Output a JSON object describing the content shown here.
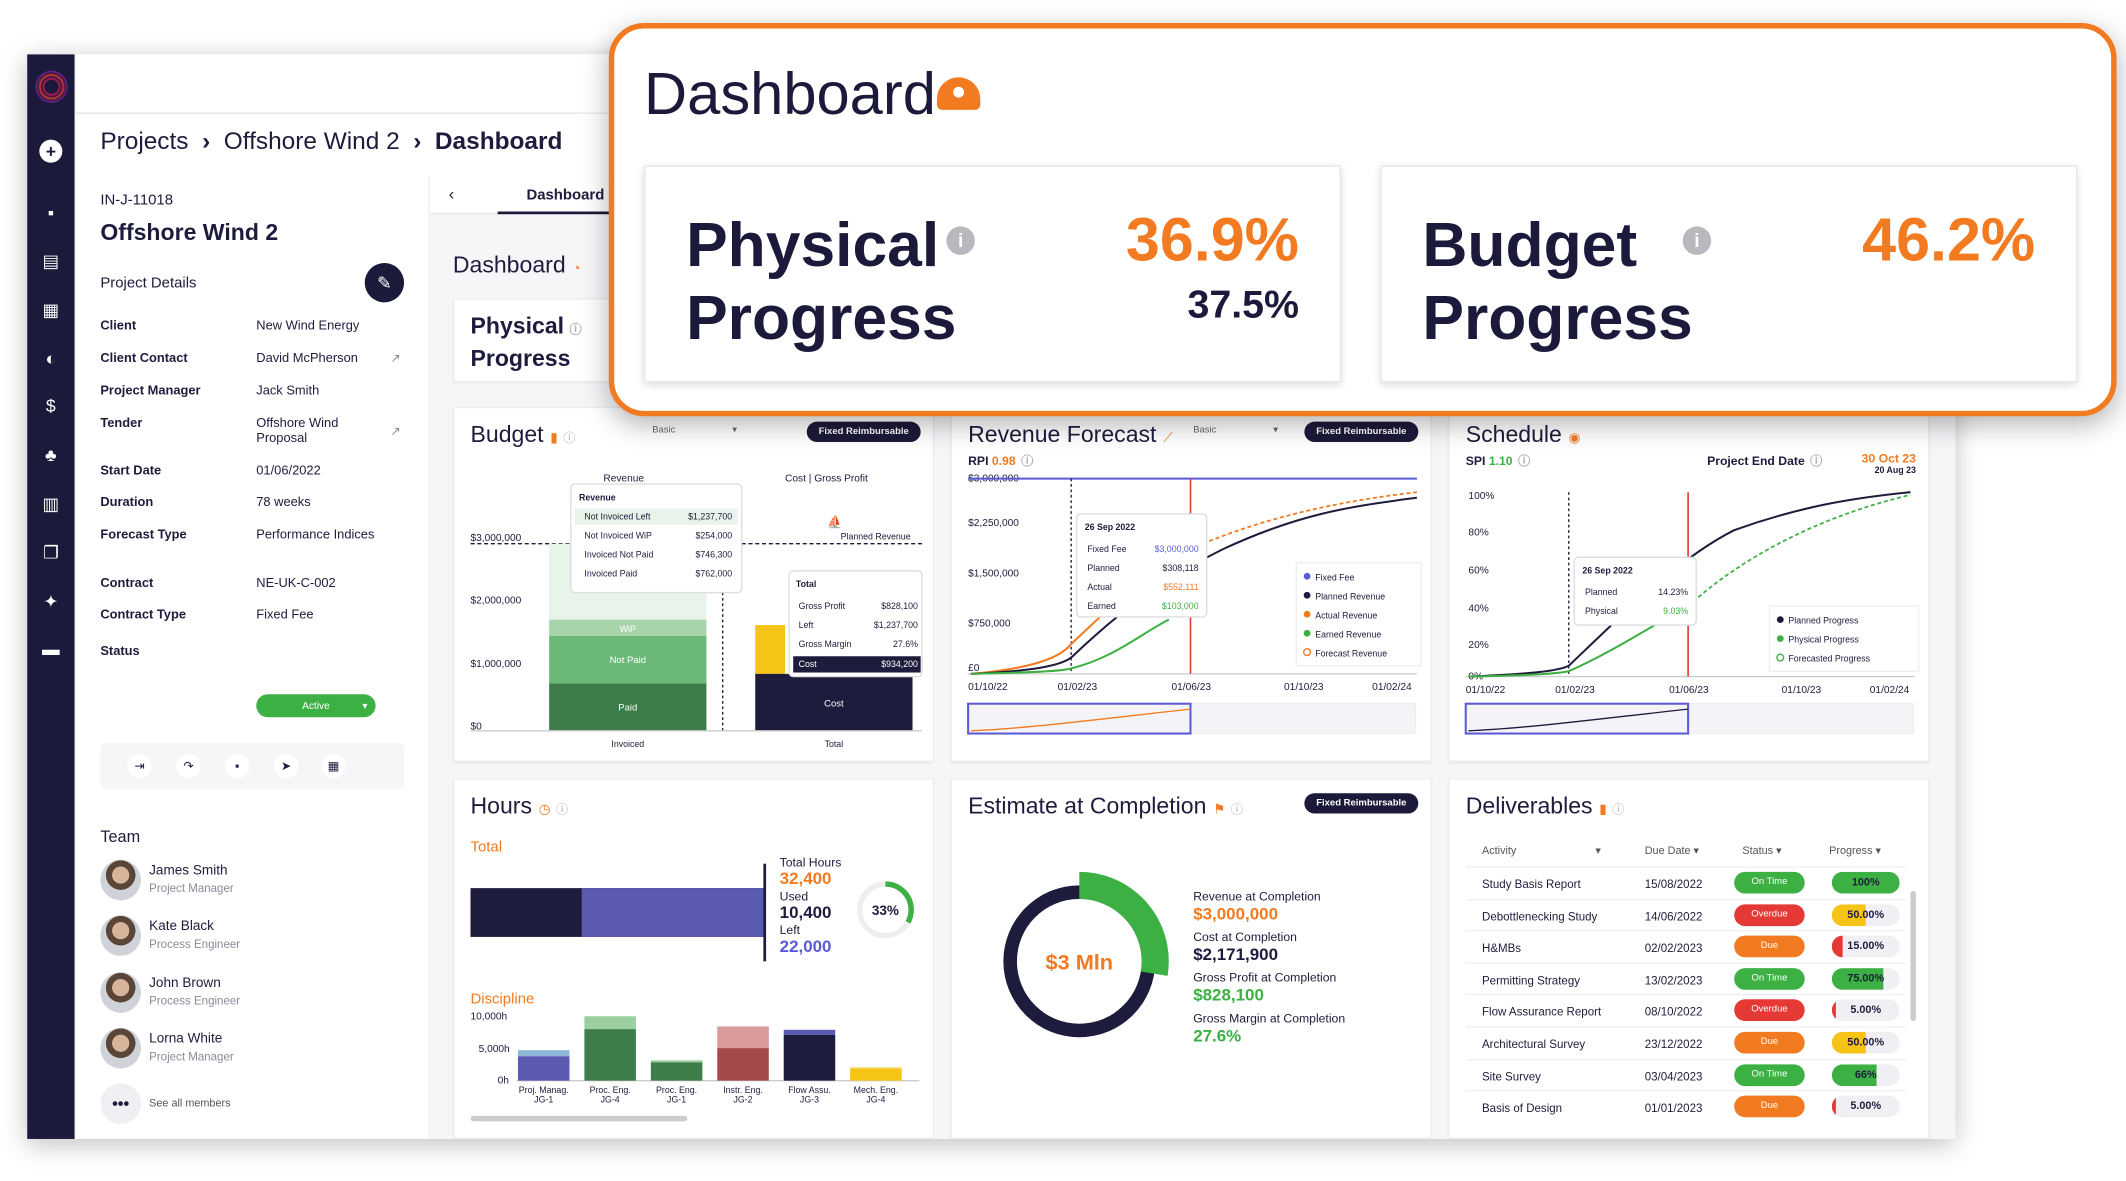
{
  "breadcrumb": {
    "item1": "Projects",
    "item2": "Offshore Wind 2",
    "current": "Dashboard"
  },
  "project": {
    "id": "IN-J-11018",
    "name": "Offshore Wind 2",
    "details_label": "Project Details",
    "client_k": "Client",
    "client_v": "New Wind Energy",
    "contact_k": "Client Contact",
    "contact_v": "David McPherson",
    "pm_k": "Project Manager",
    "pm_v": "Jack Smith",
    "tender_k": "Tender",
    "tender_v": "Offshore Wind Proposal",
    "start_k": "Start Date",
    "start_v": "01/06/2022",
    "duration_k": "Duration",
    "duration_v": "78 weeks",
    "forecast_k": "Forecast Type",
    "forecast_v": "Performance Indices",
    "contract_k": "Contract",
    "contract_v": "NE-UK-C-002",
    "ctype_k": "Contract Type",
    "ctype_v": "Fixed Fee",
    "status_k": "Status",
    "status_v": "Active"
  },
  "team": {
    "label": "Team",
    "members": [
      {
        "name": "James Smith",
        "role": "Project Manager"
      },
      {
        "name": "Kate Black",
        "role": "Process Engineer"
      },
      {
        "name": "John Brown",
        "role": "Process Engineer"
      },
      {
        "name": "Lorna White",
        "role": "Project Manager"
      }
    ],
    "see_all": "See all members"
  },
  "tabs": {
    "active": "Dashboard"
  },
  "dashboard": {
    "title": "Dashboard"
  },
  "physical": {
    "title_l1": "Physical",
    "title_l2": "Progress",
    "value": "36.9%",
    "planned": "37.5%"
  },
  "budget_progress": {
    "title_l1": "Budget",
    "title_l2": "Progress",
    "value": "46.2%"
  },
  "budget": {
    "title": "Budget",
    "select": "Basic",
    "pill": "Fixed Reimbursable",
    "col_revenue": "Revenue",
    "col_cost": "Cost | Gross Profit",
    "planned_rev": "Planned Revenue",
    "yticks": [
      "$3,000,000",
      "$2,000,000",
      "$1,000,000",
      "$0"
    ],
    "xlabels": [
      "Invoiced",
      "Total"
    ],
    "seg_wip": "WiP",
    "seg_notpaid": "Not Paid",
    "seg_paid": "Paid",
    "seg_cost": "Cost",
    "tip1": {
      "title": "Revenue",
      "rows": [
        [
          "Not Invoiced Left",
          "$1,237,700"
        ],
        [
          "Not Invoiced WiP",
          "$254,000"
        ],
        [
          "Invoiced Not Paid",
          "$746,300"
        ],
        [
          "Invoiced Paid",
          "$762,000"
        ]
      ]
    },
    "tip2": {
      "title": "Total",
      "rows": [
        [
          "Gross Profit",
          "$828,100"
        ],
        [
          "Left",
          "$1,237,700"
        ],
        [
          "Gross Margin",
          "27.6%"
        ],
        [
          "Cost",
          "$934,200"
        ]
      ]
    }
  },
  "revenue": {
    "title": "Revenue Forecast",
    "select": "Basic",
    "pill": "Fixed Reimbursable",
    "rpi_label": "RPI",
    "rpi": "0.98",
    "yticks": [
      "$3,000,000",
      "$2,250,000",
      "$1,500,000",
      "$750,000",
      "£0"
    ],
    "xticks": [
      "01/10/22",
      "01/02/23",
      "01/06/23",
      "01/10/23",
      "01/02/24"
    ],
    "tip": {
      "date": "26 Sep 2022",
      "rows": [
        [
          "Fixed Fee",
          "$3,000,000",
          "#5a5ad6"
        ],
        [
          "Planned",
          "$308,118",
          "#1e1c3c"
        ],
        [
          "Actual",
          "$552,111",
          "#f27a20"
        ],
        [
          "Earned",
          "$103,000",
          "#3cb043"
        ]
      ]
    },
    "legend": [
      "Fixed Fee",
      "Planned Revenue",
      "Actual Revenue",
      "Earned Revenue",
      "Forecast Revenue"
    ]
  },
  "schedule": {
    "title": "Schedule",
    "spi_label": "SPI",
    "spi": "1.10",
    "end_label": "Project End Date",
    "end_date": "30 Oct 23",
    "end_sub": "20 Aug 23",
    "yticks": [
      "100%",
      "80%",
      "60%",
      "40%",
      "20%",
      "0%"
    ],
    "xticks": [
      "01/10/22",
      "01/02/23",
      "01/06/23",
      "01/10/23",
      "01/02/24"
    ],
    "tip": {
      "date": "26 Sep 2022",
      "rows": [
        [
          "Planned",
          "14.23%",
          "#1e1c3c"
        ],
        [
          "Physical",
          "9.03%",
          "#3cb043"
        ]
      ]
    },
    "legend": [
      "Planned Progress",
      "Physical Progress",
      "Forecasted Progress"
    ]
  },
  "hours": {
    "title": "Hours",
    "total_label": "Total",
    "th_label": "Total Hours",
    "th": "32,400",
    "used_label": "Used",
    "used": "10,400",
    "left_label": "Left",
    "left": "22,000",
    "pct": "33%",
    "discipline_label": "Discipline",
    "yticks": [
      "10,000h",
      "5,000h",
      "0h"
    ],
    "bars": [
      {
        "l1": "Proj. Manag.",
        "l2": "JG-1"
      },
      {
        "l1": "Proc. Eng.",
        "l2": "JG-4"
      },
      {
        "l1": "Proc. Eng.",
        "l2": "JG-1"
      },
      {
        "l1": "Instr. Eng.",
        "l2": "JG-2"
      },
      {
        "l1": "Flow Assu.",
        "l2": "JG-3"
      },
      {
        "l1": "Mech. Eng.",
        "l2": "JG-4"
      }
    ]
  },
  "eac": {
    "title": "Estimate at Completion",
    "pill": "Fixed Reimbursable",
    "center": "$3 Mln",
    "rows": [
      [
        "Revenue at Completion",
        "$3,000,000",
        "#f27a20"
      ],
      [
        "Cost at Completion",
        "$2,171,900",
        "#1e1c3c"
      ],
      [
        "Gross Profit at Completion",
        "$828,100",
        "#3cb043"
      ],
      [
        "Gross Margin at Completion",
        "27.6%",
        "#3cb043"
      ]
    ]
  },
  "deliverables": {
    "title": "Deliverables",
    "cols": [
      "Activity",
      "Due Date",
      "Status",
      "Progress"
    ],
    "rows": [
      [
        "Study Basis Report",
        "15/08/2022",
        "On Time",
        "100%"
      ],
      [
        "Debottlenecking Study",
        "14/06/2022",
        "Overdue",
        "50.00%"
      ],
      [
        "H&MBs",
        "02/02/2023",
        "Due",
        "15.00%"
      ],
      [
        "Permitting Strategy",
        "13/02/2023",
        "On Time",
        "75.00%"
      ],
      [
        "Flow Assurance Report",
        "08/10/2022",
        "Overdue",
        "5.00%"
      ],
      [
        "Architectural Survey",
        "23/12/2022",
        "Due",
        "50.00%"
      ],
      [
        "Site Survey",
        "03/04/2023",
        "On Time",
        "66%"
      ],
      [
        "Basis of Design",
        "01/01/2023",
        "Due",
        "5.00%"
      ]
    ],
    "progress_values": [
      100,
      50,
      15,
      75,
      5,
      50,
      66,
      5
    ]
  }
}
